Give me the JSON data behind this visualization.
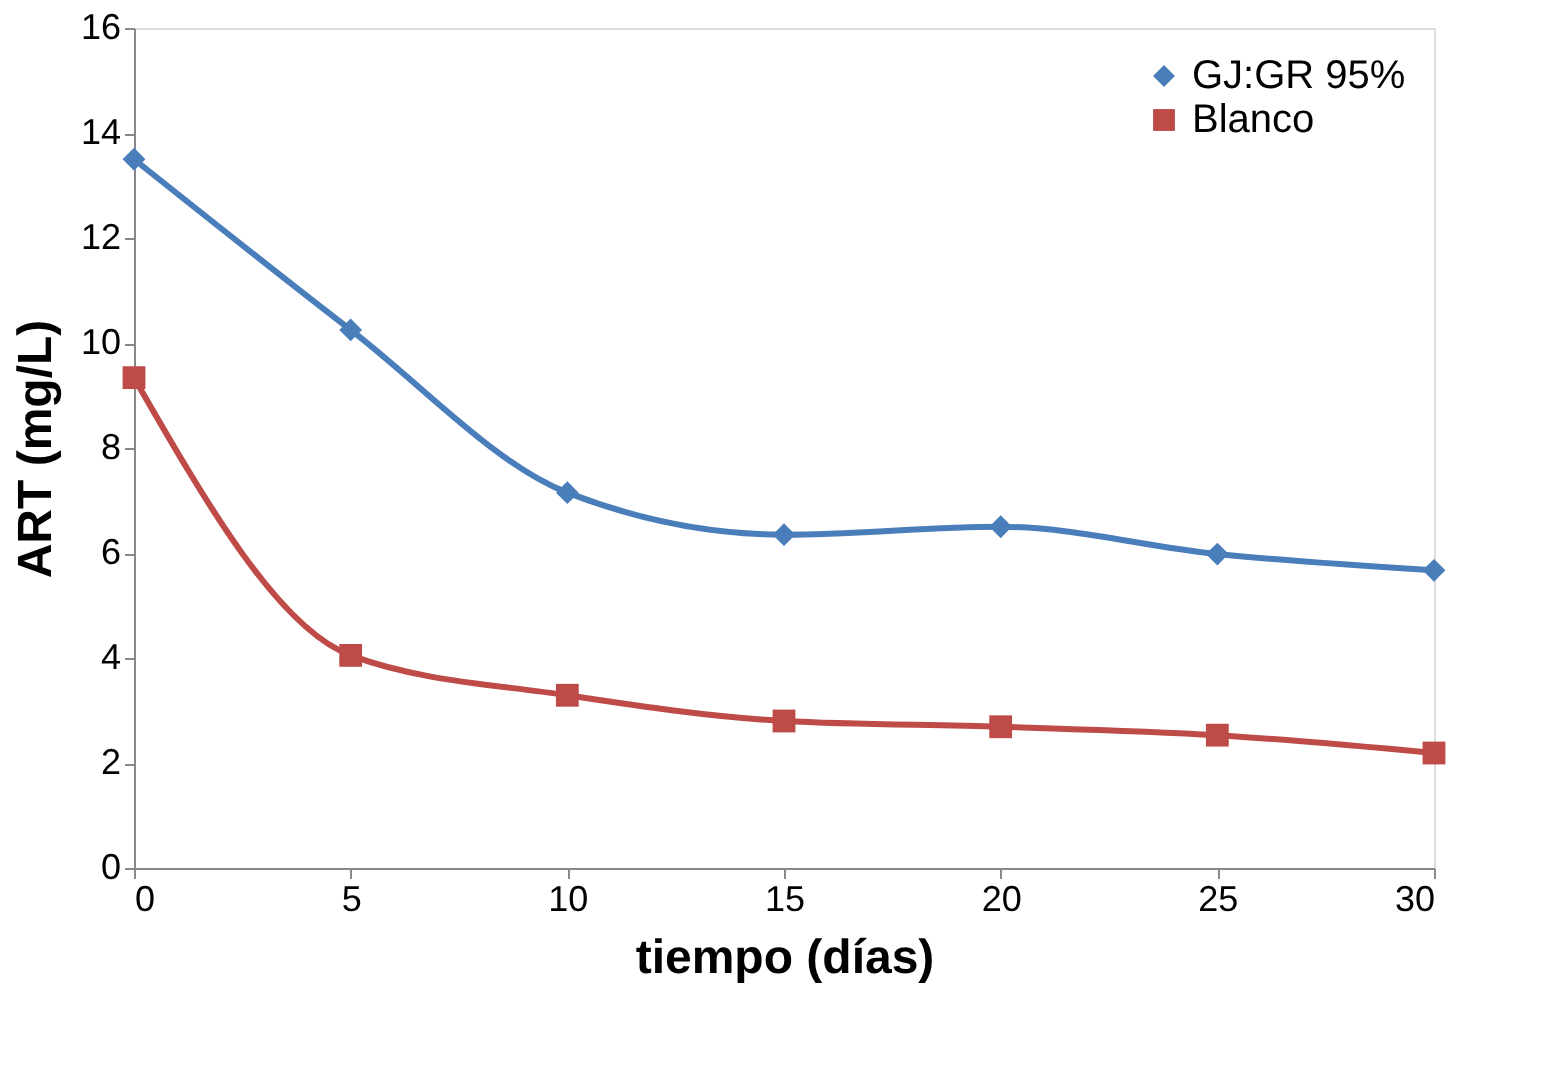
{
  "chart_data": {
    "type": "line",
    "xlabel": "tiempo (días)",
    "ylabel": "ART (mg/L)",
    "x": [
      0,
      5,
      10,
      15,
      20,
      25,
      30
    ],
    "series": [
      {
        "name": "GJ:GR 95%",
        "color": "#4a7ebb",
        "marker": "diamond",
        "values": [
          13.5,
          10.25,
          7.15,
          6.35,
          6.5,
          5.98,
          5.67
        ]
      },
      {
        "name": "Blanco",
        "color": "#be4b48",
        "marker": "square",
        "values": [
          9.34,
          4.05,
          3.29,
          2.8,
          2.69,
          2.53,
          2.19
        ]
      }
    ],
    "xlim": [
      0,
      30
    ],
    "xticks": [
      0,
      5,
      10,
      15,
      20,
      25,
      30
    ],
    "ylim": [
      0,
      16
    ],
    "yticks": [
      0,
      2,
      4,
      6,
      8,
      10,
      12,
      14,
      16
    ],
    "grid": false,
    "legend": "top right",
    "line_style": "solid"
  }
}
